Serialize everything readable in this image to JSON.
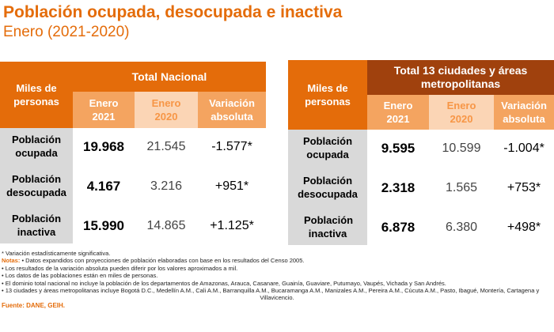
{
  "title": "Población ocupada, desocupada e inactiva",
  "subtitle": "Enero (2021-2020)",
  "national": {
    "row_header": "Miles de personas",
    "group_header": "Total Nacional",
    "col_2021": "Enero 2021",
    "col_2020": "Enero 2020",
    "col_var": "Variación absoluta",
    "rows": [
      {
        "label": "Población ocupada",
        "y2021": "19.968",
        "y2020": "21.545",
        "var": "-1.577*"
      },
      {
        "label": "Población desocupada",
        "y2021": "4.167",
        "y2020": "3.216",
        "var": "+951*"
      },
      {
        "label": "Población inactiva",
        "y2021": "15.990",
        "y2020": "14.865",
        "var": "+1.125*"
      }
    ]
  },
  "cities": {
    "row_header": "Miles de personas",
    "group_header": "Total 13 ciudades y áreas metropolitanas",
    "col_2021": "Enero 2021",
    "col_2020": "Enero 2020",
    "col_var": "Variación absoluta",
    "rows": [
      {
        "label": "Población ocupada",
        "y2021": "9.595",
        "y2020": "10.599",
        "var": "-1.004*"
      },
      {
        "label": "Población desocupada",
        "y2021": "2.318",
        "y2020": "1.565",
        "var": "+753*"
      },
      {
        "label": "Población inactiva",
        "y2021": "6.878",
        "y2020": "6.380",
        "var": "+498*"
      }
    ]
  },
  "notes": {
    "asterisk": "* Variación estadísticamente significativa.",
    "notas_label": "Notas:",
    "items": [
      "• Datos expandidos con proyecciones de población elaboradas con base en los resultados del Censo 2005.",
      "• Los resultados de la variación absoluta pueden diferir por los valores aproximados a mil.",
      "• Los datos de las poblaciones están en miles de personas.",
      "• El dominio total nacional no incluye la población de los departamentos de Amazonas, Arauca, Casanare, Guainía, Guaviare, Putumayo, Vaupés, Vichada y San Andrés.",
      "• 13 ciudades y áreas metropolitanas incluye Bogotá D.C., Medellín A.M., Cali A.M., Barranquilla A.M., Bucaramanga A.M., Manizales A.M., Pereira A.M., Cúcuta A.M., Pasto, Ibagué, Montería, Cartagena y",
      "Villavicencio."
    ],
    "source": "Fuente: DANE, GEIH."
  }
}
